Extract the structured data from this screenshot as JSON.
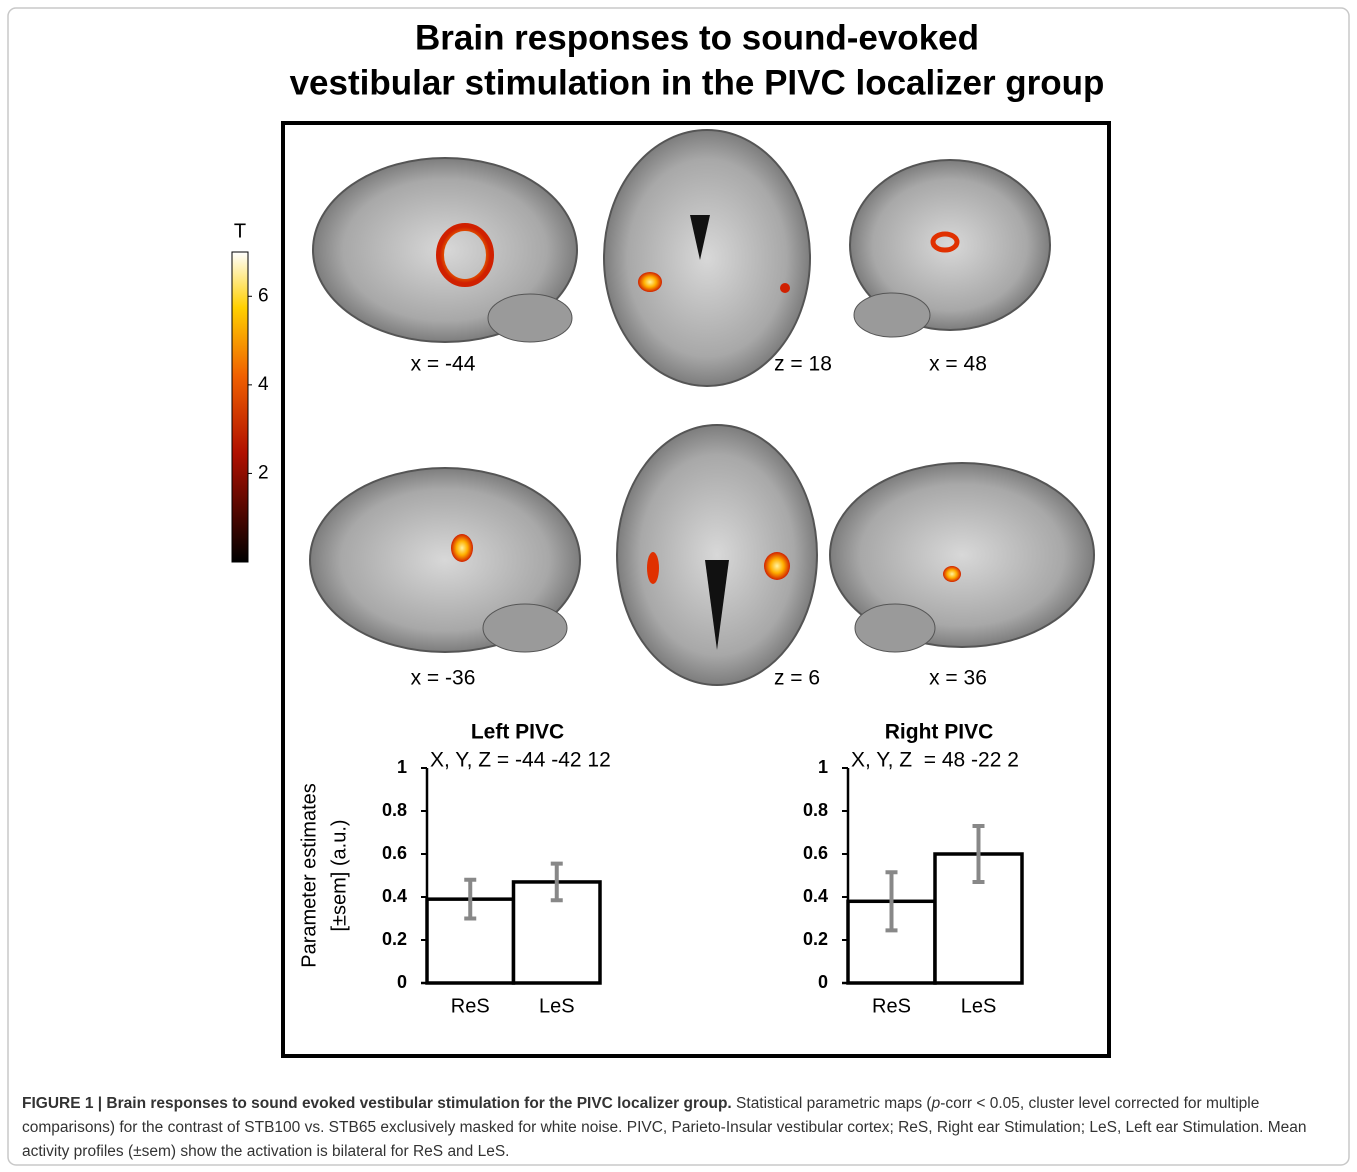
{
  "figure": {
    "title": [
      "Brain responses to sound-evoked",
      "vestibular stimulation in the PIVC localizer group"
    ],
    "slice_labels": [
      "x = -44",
      "z = 18",
      "x = 48",
      "x = -36",
      "z = 6",
      "x = 36"
    ],
    "colorbar": {
      "label": "T",
      "clim": [
        0,
        7
      ],
      "ticks": [
        2,
        4,
        6
      ]
    }
  },
  "chart_data": [
    {
      "type": "bar",
      "title": "Left PIVC",
      "subtitle": "X, Y, Z = -44 -42 12",
      "ylabel": [
        "Parameter estimates",
        "[±sem] (a.u.)"
      ],
      "categories": [
        "ReS",
        "LeS"
      ],
      "values": [
        0.39,
        0.47
      ],
      "errors": [
        0.09,
        0.085
      ],
      "color": "#ffffff",
      "error_color": "#888888",
      "ylim": [
        0,
        1
      ],
      "yticks": [
        0,
        0.2,
        0.4,
        0.6,
        0.8,
        1
      ]
    },
    {
      "type": "bar",
      "title": "Right PIVC",
      "subtitle": "X, Y, Z  = 48 -22 2",
      "categories": [
        "ReS",
        "LeS"
      ],
      "values": [
        0.38,
        0.6
      ],
      "errors": [
        0.135,
        0.13
      ],
      "color": "#ffffff",
      "error_color": "#888888",
      "ylim": [
        0,
        1
      ],
      "yticks": [
        0,
        0.2,
        0.4,
        0.6,
        0.8,
        1
      ]
    }
  ],
  "caption": {
    "label": "FIGURE 1 | Brain responses to sound evoked vestibular stimulation for the PIVC localizer group.",
    "pre": "Statistical parametric maps (",
    "italic": "p",
    "text": "-corr < 0.05, cluster level corrected for multiple comparisons) for the contrast of STB100 vs. STB65 exclusively masked for white noise. PIVC, Parieto-Insular vestibular cortex; ReS, Right ear Stimulation; LeS, Left ear Stimulation. Mean activity profiles (±sem) show the activation is bilateral for ReS and LeS."
  }
}
